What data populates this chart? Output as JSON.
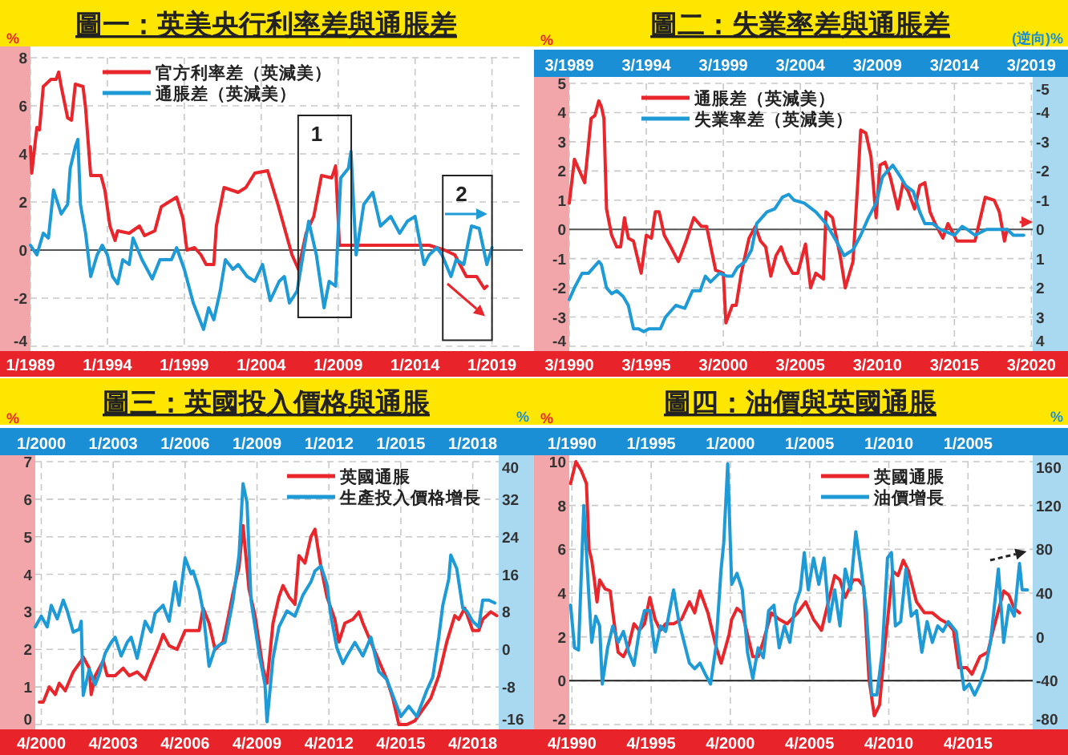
{
  "chart_data": [
    {
      "type": "line",
      "title": "圖一：英美央行利率差與通脹差",
      "ylabel": "%",
      "xlim": [
        "1989-01",
        "2021-01"
      ],
      "xticks": [
        {
          "value": "1989-01",
          "label": "1/1989"
        },
        {
          "value": "1994-01",
          "label": "1/1994"
        },
        {
          "value": "1999-01",
          "label": "1/1999"
        },
        {
          "value": "2004-01",
          "label": "1/2004"
        },
        {
          "value": "2009-01",
          "label": "1/2009"
        },
        {
          "value": "2014-01",
          "label": "1/2014"
        },
        {
          "value": "2019-01",
          "label": "1/2019"
        }
      ],
      "ylim": [
        -4,
        8
      ],
      "yticks": [
        -4,
        -2,
        0,
        2,
        4,
        6,
        8
      ],
      "grid": true,
      "legend": "top left",
      "ref_lines": [
        {
          "axis": "y",
          "value": 0,
          "color": "#555555"
        }
      ],
      "annotations": [
        "1",
        "2"
      ],
      "series": [
        {
          "name": "官方利率差（英減美）",
          "color": "#e8262b",
          "x": [
            "1989-01",
            "1989-02",
            "1989-06",
            "1989-08",
            "1989-11",
            "1990-05",
            "1990-09",
            "1990-11",
            "1991-01",
            "1991-06",
            "1991-09",
            "1991-12",
            "1992-06",
            "1992-08",
            "1992-12",
            "1993-08",
            "1993-11",
            "1994-03",
            "1994-07",
            "1994-09",
            "1995-06",
            "1996-02",
            "1996-06",
            "1997-02",
            "1997-07",
            "1998-01",
            "1998-07",
            "1998-12",
            "1999-03",
            "1999-09",
            "2000-02",
            "2000-06",
            "2000-12",
            "2001-02",
            "2001-08",
            "2002-07",
            "2003-01",
            "2003-08",
            "2004-06",
            "2005-02",
            "2006-01",
            "2006-06",
            "2006-12",
            "2007-06",
            "2007-12",
            "2008-08",
            "2008-11",
            "2009-02",
            "2009-09",
            "2014-12",
            "2015-12",
            "2016-08",
            "2017-05",
            "2018-01",
            "2018-07",
            "2018-09"
          ],
          "values": [
            4.3,
            3.2,
            5.1,
            5.0,
            6.8,
            7.1,
            7.1,
            7.4,
            6.8,
            5.5,
            5.4,
            6.9,
            6.8,
            5.9,
            3.1,
            3.1,
            2.5,
            1.0,
            0.4,
            0.8,
            0.7,
            1.0,
            0.6,
            0.8,
            1.8,
            2.0,
            2.2,
            1.3,
            0,
            0.1,
            -0.2,
            -0.6,
            -0.6,
            1.0,
            2.6,
            2.4,
            2.6,
            3.2,
            3.3,
            1.9,
            -0.2,
            -0.8,
            0.7,
            1.4,
            3.1,
            3.0,
            3.5,
            0.2,
            0.2,
            0.2,
            0,
            -0.2,
            -1.1,
            -1.1,
            -1.6,
            -1.5
          ]
        },
        {
          "name": "通脹差（英減美）",
          "color": "#1e9ad6",
          "x": [
            "1989-01",
            "1989-06",
            "1989-11",
            "1990-03",
            "1990-07",
            "1991-01",
            "1991-06",
            "1991-08",
            "1991-12",
            "1992-02",
            "1992-04",
            "1992-08",
            "1992-12",
            "1993-05",
            "1993-09",
            "1994-01",
            "1994-05",
            "1994-09",
            "1995-01",
            "1995-06",
            "1995-09",
            "1996-04",
            "1996-12",
            "1997-06",
            "1998-03",
            "1998-07",
            "1999-01",
            "1999-08",
            "2000-04",
            "2000-08",
            "2000-12",
            "2001-05",
            "2001-09",
            "2002-03",
            "2002-07",
            "2003-02",
            "2003-08",
            "2004-02",
            "2004-08",
            "2005-03",
            "2005-07",
            "2005-11",
            "2006-05",
            "2007-02",
            "2007-08",
            "2008-02",
            "2008-06",
            "2008-11",
            "2009-03",
            "2009-09",
            "2009-11",
            "2010-03",
            "2010-09",
            "2011-04",
            "2011-10",
            "2012-06",
            "2013-01",
            "2013-07",
            "2014-01",
            "2014-08",
            "2014-12",
            "2015-06",
            "2015-10",
            "2016-05",
            "2016-09",
            "2017-03",
            "2017-09",
            "2018-03",
            "2018-09",
            "2019-01"
          ],
          "values": [
            0.2,
            -0.2,
            0.7,
            0.5,
            2.5,
            1.5,
            1.9,
            3.4,
            4.3,
            4.6,
            1.9,
            0.7,
            -1.1,
            -0.2,
            0.2,
            -0.2,
            -1.1,
            -1.4,
            -0.4,
            -0.6,
            0.5,
            -0.4,
            -1.2,
            -0.4,
            -0.4,
            0.1,
            -0.8,
            -2.2,
            -3.3,
            -2.4,
            -2.9,
            -1.7,
            -0.4,
            -0.8,
            -0.6,
            -1.1,
            -1.3,
            -0.6,
            -2.1,
            -1.3,
            -1.1,
            -2.2,
            -1.7,
            1.2,
            -0.2,
            -2.4,
            -1.3,
            -1.5,
            3.0,
            3.4,
            4.1,
            -0.2,
            1.9,
            2.4,
            1.0,
            1.4,
            0.7,
            1.2,
            1.4,
            -0.6,
            -0.2,
            0.1,
            -0.2,
            -1.1,
            -0.4,
            -0.6,
            1.0,
            0.9,
            -0.6,
            0.1
          ]
        }
      ]
    },
    {
      "type": "line",
      "title": "圖二：失業率差與通脹差",
      "ylabel": "%",
      "y2label": "(逆向)%",
      "xlim": [
        "1990-03",
        "2020-04"
      ],
      "xticks": [
        {
          "value": "1990-03",
          "label": "3/1990"
        },
        {
          "value": "1995-03",
          "label": "3/1995"
        },
        {
          "value": "2000-03",
          "label": "3/2000"
        },
        {
          "value": "2005-03",
          "label": "3/2005"
        },
        {
          "value": "2010-03",
          "label": "3/2010"
        },
        {
          "value": "2015-03",
          "label": "3/2015"
        },
        {
          "value": "2020-03",
          "label": "3/2020"
        }
      ],
      "x2lim": [
        "1989-03",
        "2019-04"
      ],
      "x2ticks": [
        {
          "value": "1989-03",
          "label": "3/1989"
        },
        {
          "value": "1994-03",
          "label": "3/1994"
        },
        {
          "value": "1999-03",
          "label": "3/1999"
        },
        {
          "value": "2004-03",
          "label": "3/2004"
        },
        {
          "value": "2009-03",
          "label": "3/2009"
        },
        {
          "value": "2014-03",
          "label": "3/2014"
        },
        {
          "value": "2019-03",
          "label": "3/2019"
        }
      ],
      "ylim": [
        -4,
        5
      ],
      "yticks": [
        -4,
        -3,
        -2,
        -1,
        0,
        1,
        2,
        3,
        4,
        5
      ],
      "y2lim": [
        4,
        -5
      ],
      "y2ticks": [
        -5,
        -4,
        -3,
        -2,
        -1,
        0,
        1,
        2,
        3,
        4
      ],
      "grid": true,
      "legend": "top left",
      "ref_lines": [
        {
          "axis": "y",
          "value": 0,
          "color": "#555555"
        }
      ],
      "series": [
        {
          "name": "通脹差（英減美）",
          "color": "#e8262b",
          "x": [
            "1990-03",
            "1990-07",
            "1990-11",
            "1991-03",
            "1991-08",
            "1991-11",
            "1992-02",
            "1992-04",
            "1992-06",
            "1992-08",
            "1992-12",
            "1993-04",
            "1993-07",
            "1993-10",
            "1994-01",
            "1994-05",
            "1994-11",
            "1995-03",
            "1995-07",
            "1995-10",
            "1996-01",
            "1996-05",
            "1996-10",
            "1997-04",
            "1997-10",
            "1998-04",
            "1998-10",
            "1999-02",
            "1999-09",
            "2000-03",
            "2000-05",
            "2000-10",
            "2001-01",
            "2001-05",
            "2001-11",
            "2002-04",
            "2002-08",
            "2002-12",
            "2003-04",
            "2003-08",
            "2003-12",
            "2004-04",
            "2004-09",
            "2005-01",
            "2005-07",
            "2005-11",
            "2006-03",
            "2006-09",
            "2006-11",
            "2007-04",
            "2007-10",
            "2008-02",
            "2008-08",
            "2008-12",
            "2009-02",
            "2009-06",
            "2009-10",
            "2010-02",
            "2010-05",
            "2010-09",
            "2011-01",
            "2011-07",
            "2011-11",
            "2012-03",
            "2012-08",
            "2012-12",
            "2013-04",
            "2013-08",
            "2013-12",
            "2014-06",
            "2014-10",
            "2015-05",
            "2015-11",
            "2016-07",
            "2017-03",
            "2017-10",
            "2018-02",
            "2018-06",
            "2018-08"
          ],
          "values": [
            0.9,
            2.4,
            2.0,
            1.6,
            3.8,
            3.9,
            4.4,
            4.2,
            3.8,
            0.7,
            -0.2,
            -0.6,
            -0.6,
            0.4,
            -0.3,
            -0.4,
            -1.5,
            -0.2,
            -0.3,
            0.6,
            0.6,
            -0.2,
            -0.6,
            -1.1,
            -0.4,
            0.4,
            0.1,
            0.1,
            -1.4,
            -1.5,
            -3.2,
            -2.6,
            -2.6,
            -1.5,
            -0.3,
            0.1,
            -0.4,
            -0.6,
            -1.6,
            -0.9,
            -0.6,
            -1.1,
            -1.5,
            -1.5,
            -0.5,
            -2.0,
            -1.5,
            -1.7,
            0.6,
            0.4,
            -0.9,
            -2.0,
            -1.1,
            1.8,
            3.4,
            3.3,
            2.5,
            0.4,
            2.2,
            2.3,
            1.8,
            0.7,
            1.6,
            1.3,
            0.7,
            1.5,
            1.6,
            0.6,
            0.2,
            -0.3,
            0.2,
            -0.4,
            -0.4,
            -0.4,
            1.1,
            1.0,
            0.6,
            -0.4,
            0
          ]
        },
        {
          "name": "失業率差（英減美）",
          "color": "#1e9ad6",
          "axis": "y2",
          "x": [
            "1990-03",
            "1990-07",
            "1991-01",
            "1991-06",
            "1991-10",
            "1992-02",
            "1992-04",
            "1992-08",
            "1992-12",
            "1993-04",
            "1993-09",
            "1994-01",
            "1994-05",
            "1994-09",
            "1995-01",
            "1995-05",
            "1996-02",
            "1996-06",
            "1996-10",
            "1997-02",
            "1997-09",
            "1998-03",
            "1998-09",
            "1999-01",
            "1999-05",
            "1999-12",
            "2000-06",
            "2000-10",
            "2001-02",
            "2001-08",
            "2002-01",
            "2002-05",
            "2003-01",
            "2003-07",
            "2004-01",
            "2004-06",
            "2004-10",
            "2005-06",
            "2006-03",
            "2006-11",
            "2007-07",
            "2008-01",
            "2008-08",
            "2009-02",
            "2009-08",
            "2010-02",
            "2010-07",
            "2010-11",
            "2011-03",
            "2011-09",
            "2012-01",
            "2012-07",
            "2012-12",
            "2013-04",
            "2013-10",
            "2014-04",
            "2015-03",
            "2015-09",
            "2016-01",
            "2016-07",
            "2017-04",
            "2017-12",
            "2018-08",
            "2019-01",
            "2019-09"
          ],
          "values": [
            2.4,
            2.0,
            1.5,
            1.5,
            1.3,
            1.1,
            1.2,
            2.0,
            2.2,
            2.1,
            2.3,
            2.6,
            3.4,
            3.4,
            3.5,
            3.4,
            3.4,
            3.0,
            2.8,
            2.6,
            2.7,
            2.1,
            2.1,
            1.6,
            1.8,
            1.5,
            1.6,
            1.6,
            1.3,
            1.1,
            0.7,
            -0.2,
            -0.6,
            -0.7,
            -1.1,
            -1.2,
            -1.0,
            -0.9,
            -0.6,
            -0.2,
            0.4,
            0.9,
            0.7,
            0.2,
            -0.4,
            -0.9,
            -1.8,
            -2.0,
            -2.2,
            -1.8,
            -1.5,
            -1.3,
            -0.6,
            -0.2,
            -0.2,
            0,
            0.2,
            -0.1,
            0,
            0.2,
            0,
            0,
            0,
            0.2,
            0.2
          ]
        }
      ]
    },
    {
      "type": "line",
      "title": "圖三：英國投入價格與通脹",
      "ylabel": "%",
      "y2label": "%",
      "xlim": [
        "2000-01",
        "2019-05"
      ],
      "xticks": [
        {
          "value": "2000-04",
          "label": "4/2000"
        },
        {
          "value": "2003-04",
          "label": "4/2003"
        },
        {
          "value": "2006-04",
          "label": "4/2006"
        },
        {
          "value": "2009-04",
          "label": "4/2009"
        },
        {
          "value": "2012-04",
          "label": "4/2012"
        },
        {
          "value": "2015-04",
          "label": "4/2015"
        },
        {
          "value": "2018-04",
          "label": "4/2018"
        }
      ],
      "x2lim": [
        "1999-10",
        "2019-02"
      ],
      "x2ticks": [
        {
          "value": "2000-01",
          "label": "1/2000"
        },
        {
          "value": "2003-01",
          "label": "1/2003"
        },
        {
          "value": "2006-01",
          "label": "1/2006"
        },
        {
          "value": "2009-01",
          "label": "1/2009"
        },
        {
          "value": "2012-01",
          "label": "1/2012"
        },
        {
          "value": "2015-01",
          "label": "1/2015"
        },
        {
          "value": "2018-01",
          "label": "1/2018"
        }
      ],
      "ylim": [
        0,
        7
      ],
      "yticks": [
        0,
        1,
        2,
        3,
        4,
        5,
        6,
        7
      ],
      "y2lim": [
        -16,
        40
      ],
      "y2ticks": [
        -16,
        -8,
        0,
        8,
        16,
        24,
        32,
        40
      ],
      "grid": true,
      "legend": "top right",
      "series": [
        {
          "name": "英國通脹",
          "color": "#e8262b",
          "x": [
            "2000-03",
            "2000-05",
            "2000-08",
            "2000-11",
            "2001-01",
            "2001-04",
            "2001-08",
            "2001-12",
            "2002-01",
            "2002-04",
            "2002-05",
            "2002-07",
            "2002-11",
            "2003-01",
            "2003-05",
            "2003-09",
            "2003-12",
            "2004-04",
            "2004-08",
            "2004-11",
            "2005-03",
            "2005-05",
            "2005-08",
            "2005-12",
            "2006-04",
            "2006-07",
            "2006-11",
            "2007-01",
            "2007-04",
            "2007-07",
            "2007-11",
            "2008-01",
            "2008-04",
            "2008-07",
            "2008-09",
            "2008-12",
            "2009-03",
            "2009-07",
            "2009-09",
            "2009-12",
            "2010-03",
            "2010-05",
            "2010-08",
            "2010-11",
            "2011-01",
            "2011-04",
            "2011-07",
            "2011-09",
            "2011-12",
            "2012-03",
            "2012-07",
            "2012-09",
            "2012-12",
            "2013-04",
            "2013-07",
            "2013-09",
            "2014-01",
            "2014-05",
            "2014-09",
            "2014-12",
            "2015-03",
            "2015-07",
            "2015-11",
            "2016-03",
            "2016-07",
            "2016-11",
            "2017-03",
            "2017-07",
            "2017-09",
            "2017-12",
            "2018-04",
            "2018-07",
            "2018-09",
            "2019-01",
            "2019-04"
          ],
          "values": [
            0.6,
            0.6,
            1.0,
            0.8,
            1.1,
            0.9,
            1.4,
            1.7,
            1.8,
            1.5,
            0.8,
            1.3,
            1.7,
            1.3,
            1.3,
            1.5,
            1.3,
            1.4,
            1.2,
            1.6,
            2.1,
            2.4,
            2.1,
            2.0,
            2.5,
            2.5,
            2.5,
            3.1,
            2.7,
            2.0,
            2.2,
            2.7,
            3.5,
            4.2,
            5.3,
            3.6,
            2.9,
            1.5,
            1.1,
            2.7,
            3.4,
            3.7,
            3.4,
            3.2,
            4.5,
            4.3,
            5.0,
            5.2,
            4.2,
            3.4,
            2.8,
            2.2,
            2.7,
            2.8,
            3.0,
            2.7,
            2.2,
            1.7,
            1.2,
            0.7,
            0.0,
            0.0,
            0.1,
            0.4,
            0.7,
            1.3,
            2.2,
            2.9,
            2.8,
            3.1,
            2.5,
            2.5,
            2.8,
            3.0,
            2.9
          ]
        },
        {
          "name": "生產投入價格增長",
          "color": "#1e9ad6",
          "axis": "y2",
          "x": [
            "2000-01",
            "2000-04",
            "2000-07",
            "2000-09",
            "2000-12",
            "2001-03",
            "2001-05",
            "2001-08",
            "2001-11",
            "2001-12",
            "2002-01",
            "2002-04",
            "2002-07",
            "2002-09",
            "2002-12",
            "2003-03",
            "2003-05",
            "2003-08",
            "2003-11",
            "2004-01",
            "2004-04",
            "2004-08",
            "2004-11",
            "2005-01",
            "2005-05",
            "2005-08",
            "2005-11",
            "2006-01",
            "2006-04",
            "2006-07",
            "2006-08",
            "2006-11",
            "2007-01",
            "2007-04",
            "2007-07",
            "2007-09",
            "2007-12",
            "2008-04",
            "2008-07",
            "2008-09",
            "2008-11",
            "2009-01",
            "2009-05",
            "2009-08",
            "2009-09",
            "2009-12",
            "2010-03",
            "2010-07",
            "2010-11",
            "2011-03",
            "2011-07",
            "2011-09",
            "2011-12",
            "2012-03",
            "2012-05",
            "2012-08",
            "2012-11",
            "2013-01",
            "2013-05",
            "2013-09",
            "2014-01",
            "2014-05",
            "2014-09",
            "2014-12",
            "2015-04",
            "2015-08",
            "2015-12",
            "2016-05",
            "2016-08",
            "2016-11",
            "2017-01",
            "2017-04",
            "2017-05",
            "2017-08",
            "2017-11",
            "2018-01",
            "2018-04",
            "2018-07",
            "2018-09",
            "2018-12",
            "2019-03"
          ],
          "values": [
            4.8,
            7.1,
            4.8,
            9.4,
            6.5,
            10.5,
            8.2,
            3.7,
            4.3,
            6.0,
            -9.8,
            -4.2,
            -7.5,
            -5.3,
            -0.8,
            1.5,
            2.6,
            -1.4,
            1.5,
            2.6,
            -1.9,
            6.0,
            3.7,
            7.7,
            9.4,
            6.0,
            14.4,
            9.4,
            19.5,
            16.1,
            16.7,
            12.7,
            8.2,
            -3.6,
            0.3,
            0.9,
            1.5,
            10.5,
            20.1,
            35.3,
            31.3,
            10.5,
            -0.8,
            -7.5,
            -15.4,
            -1.9,
            4.8,
            8.2,
            7.1,
            11.6,
            14.4,
            16.7,
            17.8,
            13.9,
            7.1,
            0.3,
            -3.0,
            -1.4,
            1.5,
            -1.4,
            2.6,
            -4.7,
            -6.4,
            -9.8,
            -14.3,
            -12.1,
            -14.3,
            -8.7,
            -5.9,
            2.6,
            9.4,
            15.0,
            20.1,
            17.2,
            8.8,
            8.2,
            6.0,
            4.8,
            10.5,
            10.5,
            9.9
          ]
        }
      ]
    },
    {
      "type": "line",
      "title": "圖四：油價與英國通脹",
      "ylabel": "%",
      "y2label": "%",
      "xlim": [
        "1990-02",
        "2019-05"
      ],
      "xticks": [
        {
          "value": "1990-04",
          "label": "4/1990"
        },
        {
          "value": "1995-04",
          "label": "4/1995"
        },
        {
          "value": "2000-04",
          "label": "4/2000"
        },
        {
          "value": "2005-04",
          "label": "4/2005"
        },
        {
          "value": "2010-04",
          "label": "4/2010"
        },
        {
          "value": "2015-04",
          "label": "4/2015"
        }
      ],
      "x2lim": [
        "1989-11",
        "2019-02"
      ],
      "x2ticks": [
        {
          "value": "1990-01",
          "label": "1/1990"
        },
        {
          "value": "1995-01",
          "label": "1/1995"
        },
        {
          "value": "2000-01",
          "label": "1/2000"
        },
        {
          "value": "2005-01",
          "label": "1/2005"
        },
        {
          "value": "2010-01",
          "label": "1/2010"
        },
        {
          "value": "2015-01",
          "label": null
        }
      ],
      "annotations": [
        "1/2005"
      ],
      "ylim": [
        -2,
        10
      ],
      "yticks": [
        -2,
        0,
        2,
        4,
        6,
        8,
        10
      ],
      "y2lim": [
        -80,
        160
      ],
      "y2ticks": [
        -80,
        -40,
        0,
        40,
        80,
        120,
        160
      ],
      "grid": true,
      "legend": "top right",
      "ref_lines": [
        {
          "axis": "y",
          "value": 0,
          "color": "#222222"
        }
      ],
      "series": [
        {
          "name": "英國通脹",
          "color": "#e8262b",
          "x": [
            "1990-03",
            "1990-07",
            "1990-11",
            "1991-03",
            "1991-05",
            "1991-07",
            "1991-09",
            "1991-11",
            "1992-01",
            "1992-05",
            "1992-09",
            "1992-11",
            "1993-03",
            "1993-07",
            "1993-11",
            "1994-03",
            "1994-07",
            "1994-11",
            "1995-03",
            "1995-07",
            "1995-11",
            "1996-03",
            "1996-09",
            "1997-03",
            "1997-09",
            "1998-01",
            "1998-05",
            "1998-11",
            "1999-05",
            "1999-09",
            "2000-03",
            "2000-05",
            "2000-09",
            "2001-01",
            "2001-05",
            "2001-09",
            "2002-01",
            "2002-05",
            "2002-11",
            "2003-05",
            "2003-11",
            "2004-07",
            "2005-01",
            "2005-07",
            "2006-01",
            "2006-05",
            "2006-11",
            "2007-03",
            "2007-07",
            "2008-01",
            "2008-05",
            "2008-09",
            "2009-01",
            "2009-05",
            "2009-09",
            "2010-01",
            "2010-07",
            "2010-11",
            "2011-03",
            "2011-07",
            "2012-01",
            "2012-07",
            "2013-01",
            "2013-07",
            "2014-01",
            "2014-05",
            "2014-09",
            "2015-03",
            "2015-07",
            "2016-01",
            "2016-07",
            "2016-11",
            "2017-07",
            "2017-11",
            "2018-03",
            "2018-07"
          ],
          "values": [
            9.0,
            10.0,
            9.6,
            9.0,
            6.0,
            5.5,
            4.6,
            3.6,
            4.6,
            4.2,
            4.1,
            3.1,
            1.3,
            1.1,
            1.6,
            2.6,
            2.3,
            2.6,
            3.8,
            2.8,
            2.3,
            2.6,
            2.6,
            2.8,
            3.6,
            3.1,
            4.1,
            3.1,
            1.6,
            0.8,
            2.1,
            2.8,
            3.3,
            3.1,
            2.1,
            1.1,
            1.1,
            1.8,
            3.1,
            2.8,
            2.6,
            3.1,
            3.6,
            2.8,
            2.3,
            3.3,
            4.8,
            4.6,
            3.8,
            4.6,
            4.6,
            4.3,
            0.1,
            -1.6,
            -1.1,
            1.6,
            5.0,
            4.8,
            5.5,
            5.0,
            3.6,
            3.1,
            3.1,
            2.8,
            2.6,
            2.3,
            0.6,
            0.6,
            0.3,
            1.1,
            1.3,
            2.3,
            4.1,
            3.9,
            3.3,
            3.1
          ]
        },
        {
          "name": "油價增長",
          "color": "#1e9ad6",
          "axis": "y2",
          "x": [
            "1990-03",
            "1990-06",
            "1990-09",
            "1991-01",
            "1991-03",
            "1991-05",
            "1991-07",
            "1991-10",
            "1992-01",
            "1992-03",
            "1992-07",
            "1992-11",
            "1993-03",
            "1993-07",
            "1993-11",
            "1994-03",
            "1994-07",
            "1994-11",
            "1995-03",
            "1995-07",
            "1995-11",
            "1996-03",
            "1996-09",
            "1997-01",
            "1997-05",
            "1997-09",
            "1998-01",
            "1998-05",
            "1998-09",
            "1999-01",
            "1999-05",
            "1999-09",
            "1999-11",
            "2000-02",
            "2000-05",
            "2000-09",
            "2001-01",
            "2001-05",
            "2001-09",
            "2002-01",
            "2002-05",
            "2002-09",
            "2003-01",
            "2003-05",
            "2003-09",
            "2004-01",
            "2004-05",
            "2004-09",
            "2004-12",
            "2005-03",
            "2005-07",
            "2005-11",
            "2006-03",
            "2006-07",
            "2006-11",
            "2007-03",
            "2007-07",
            "2007-11",
            "2008-03",
            "2008-07",
            "2008-11",
            "2009-03",
            "2009-07",
            "2009-11",
            "2010-03",
            "2010-06",
            "2010-09",
            "2011-01",
            "2011-05",
            "2011-09",
            "2012-01",
            "2012-05",
            "2012-09",
            "2013-01",
            "2013-05",
            "2013-09",
            "2014-01",
            "2014-07",
            "2015-01",
            "2015-05",
            "2015-09",
            "2016-01",
            "2016-05",
            "2016-09",
            "2017-03",
            "2017-07",
            "2017-11",
            "2018-03",
            "2018-07",
            "2018-09",
            "2019-01"
          ],
          "values": [
            29,
            -10,
            -12,
            120,
            77,
            34,
            -5,
            19,
            10,
            -43,
            -10,
            10,
            -5,
            5,
            -14,
            -26,
            5,
            24,
            24,
            -14,
            10,
            5,
            43,
            14,
            -5,
            -24,
            -29,
            -24,
            -34,
            -43,
            -10,
            62,
            86,
            158,
            48,
            58,
            43,
            -14,
            -38,
            -10,
            -19,
            24,
            29,
            -10,
            10,
            -5,
            29,
            43,
            77,
            43,
            72,
            48,
            72,
            14,
            43,
            10,
            62,
            43,
            96,
            62,
            24,
            -53,
            -53,
            -14,
            72,
            77,
            10,
            14,
            62,
            19,
            24,
            -14,
            14,
            -5,
            10,
            5,
            14,
            5,
            -48,
            -43,
            -53,
            -43,
            -29,
            -5,
            62,
            -5,
            29,
            19,
            67,
            43,
            43
          ]
        }
      ]
    }
  ]
}
